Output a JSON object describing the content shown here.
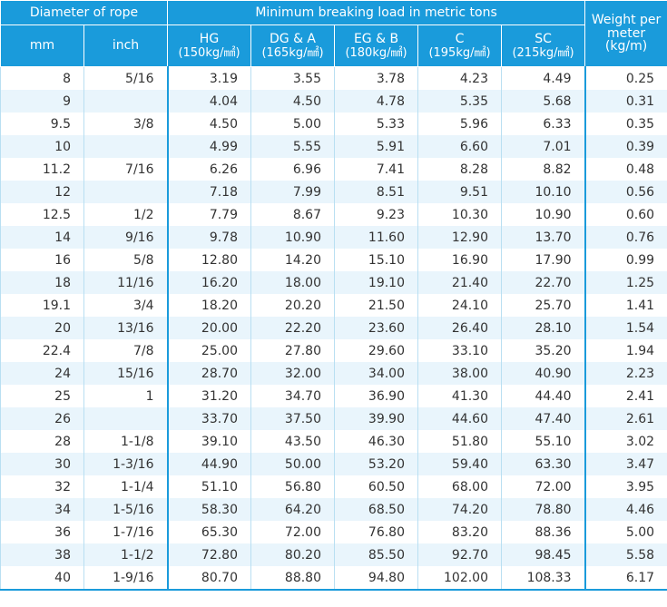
{
  "header": {
    "diameter_group": "Diameter of rope",
    "load_group": "Minimum breaking load in metric tons",
    "weight": "Weight per meter (kg/m)",
    "mm": "mm",
    "inch": "inch",
    "grades": [
      {
        "name": "HG",
        "unit": "(150kg/㎟)"
      },
      {
        "name": "DG & A",
        "unit": "(165kg/㎟)"
      },
      {
        "name": "EG & B",
        "unit": "(180kg/㎟)"
      },
      {
        "name": "C",
        "unit": "(195kg/㎟)"
      },
      {
        "name": "SC",
        "unit": "(215kg/㎟)"
      }
    ]
  },
  "rows": [
    [
      "8",
      "5/16",
      "3.19",
      "3.55",
      "3.78",
      "4.23",
      "4.49",
      "0.25"
    ],
    [
      "9",
      "",
      "4.04",
      "4.50",
      "4.78",
      "5.35",
      "5.68",
      "0.31"
    ],
    [
      "9.5",
      "3/8",
      "4.50",
      "5.00",
      "5.33",
      "5.96",
      "6.33",
      "0.35"
    ],
    [
      "10",
      "",
      "4.99",
      "5.55",
      "5.91",
      "6.60",
      "7.01",
      "0.39"
    ],
    [
      "11.2",
      "7/16",
      "6.26",
      "6.96",
      "7.41",
      "8.28",
      "8.82",
      "0.48"
    ],
    [
      "12",
      "",
      "7.18",
      "7.99",
      "8.51",
      "9.51",
      "10.10",
      "0.56"
    ],
    [
      "12.5",
      "1/2",
      "7.79",
      "8.67",
      "9.23",
      "10.30",
      "10.90",
      "0.60"
    ],
    [
      "14",
      "9/16",
      "9.78",
      "10.90",
      "11.60",
      "12.90",
      "13.70",
      "0.76"
    ],
    [
      "16",
      "5/8",
      "12.80",
      "14.20",
      "15.10",
      "16.90",
      "17.90",
      "0.99"
    ],
    [
      "18",
      "11/16",
      "16.20",
      "18.00",
      "19.10",
      "21.40",
      "22.70",
      "1.25"
    ],
    [
      "19.1",
      "3/4",
      "18.20",
      "20.20",
      "21.50",
      "24.10",
      "25.70",
      "1.41"
    ],
    [
      "20",
      "13/16",
      "20.00",
      "22.20",
      "23.60",
      "26.40",
      "28.10",
      "1.54"
    ],
    [
      "22.4",
      "7/8",
      "25.00",
      "27.80",
      "29.60",
      "33.10",
      "35.20",
      "1.94"
    ],
    [
      "24",
      "15/16",
      "28.70",
      "32.00",
      "34.00",
      "38.00",
      "40.90",
      "2.23"
    ],
    [
      "25",
      "1",
      "31.20",
      "34.70",
      "36.90",
      "41.30",
      "44.40",
      "2.41"
    ],
    [
      "26",
      "",
      "33.70",
      "37.50",
      "39.90",
      "44.60",
      "47.40",
      "2.61"
    ],
    [
      "28",
      "1-1/8",
      "39.10",
      "43.50",
      "46.30",
      "51.80",
      "55.10",
      "3.02"
    ],
    [
      "30",
      "1-3/16",
      "44.90",
      "50.00",
      "53.20",
      "59.40",
      "63.30",
      "3.47"
    ],
    [
      "32",
      "1-1/4",
      "51.10",
      "56.80",
      "60.50",
      "68.00",
      "72.00",
      "3.95"
    ],
    [
      "34",
      "1-5/16",
      "58.30",
      "64.20",
      "68.50",
      "74.20",
      "78.80",
      "4.46"
    ],
    [
      "36",
      "1-7/16",
      "65.30",
      "72.00",
      "76.80",
      "83.20",
      "88.36",
      "5.00"
    ],
    [
      "38",
      "1-1/2",
      "72.80",
      "80.20",
      "85.50",
      "92.70",
      "98.45",
      "5.58"
    ],
    [
      "40",
      "1-9/16",
      "80.70",
      "88.80",
      "94.80",
      "102.00",
      "108.33",
      "6.17"
    ]
  ]
}
